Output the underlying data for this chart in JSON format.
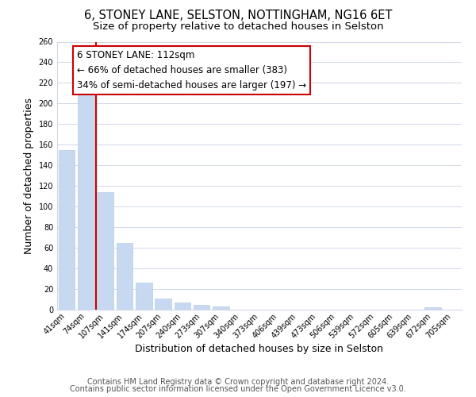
{
  "title": "6, STONEY LANE, SELSTON, NOTTINGHAM, NG16 6ET",
  "subtitle": "Size of property relative to detached houses in Selston",
  "xlabel": "Distribution of detached houses by size in Selston",
  "ylabel": "Number of detached properties",
  "bar_labels": [
    "41sqm",
    "74sqm",
    "107sqm",
    "141sqm",
    "174sqm",
    "207sqm",
    "240sqm",
    "273sqm",
    "307sqm",
    "340sqm",
    "373sqm",
    "406sqm",
    "439sqm",
    "473sqm",
    "506sqm",
    "539sqm",
    "572sqm",
    "605sqm",
    "639sqm",
    "672sqm",
    "705sqm"
  ],
  "bar_values": [
    155,
    209,
    114,
    65,
    26,
    11,
    7,
    5,
    3,
    0,
    0,
    0,
    0,
    0,
    0,
    0,
    0,
    0,
    0,
    2,
    0
  ],
  "bar_color": "#c6d9f0",
  "bar_edge_color": "#b8cce4",
  "ylim": [
    0,
    260
  ],
  "yticks": [
    0,
    20,
    40,
    60,
    80,
    100,
    120,
    140,
    160,
    180,
    200,
    220,
    240,
    260
  ],
  "annotation_title": "6 STONEY LANE: 112sqm",
  "annotation_line1": "← 66% of detached houses are smaller (383)",
  "annotation_line2": "34% of semi-detached houses are larger (197) →",
  "vline_index": 1.5,
  "footer1": "Contains HM Land Registry data © Crown copyright and database right 2024.",
  "footer2": "Contains public sector information licensed under the Open Government Licence v3.0.",
  "background_color": "#ffffff",
  "grid_color": "#d0d8e8",
  "vline_color": "#cc0000",
  "annotation_box_color": "#ffffff",
  "annotation_box_edge_color": "#cc0000",
  "title_fontsize": 10.5,
  "subtitle_fontsize": 9.5,
  "axis_label_fontsize": 9,
  "tick_fontsize": 7,
  "annotation_fontsize": 8.5,
  "footer_fontsize": 7
}
